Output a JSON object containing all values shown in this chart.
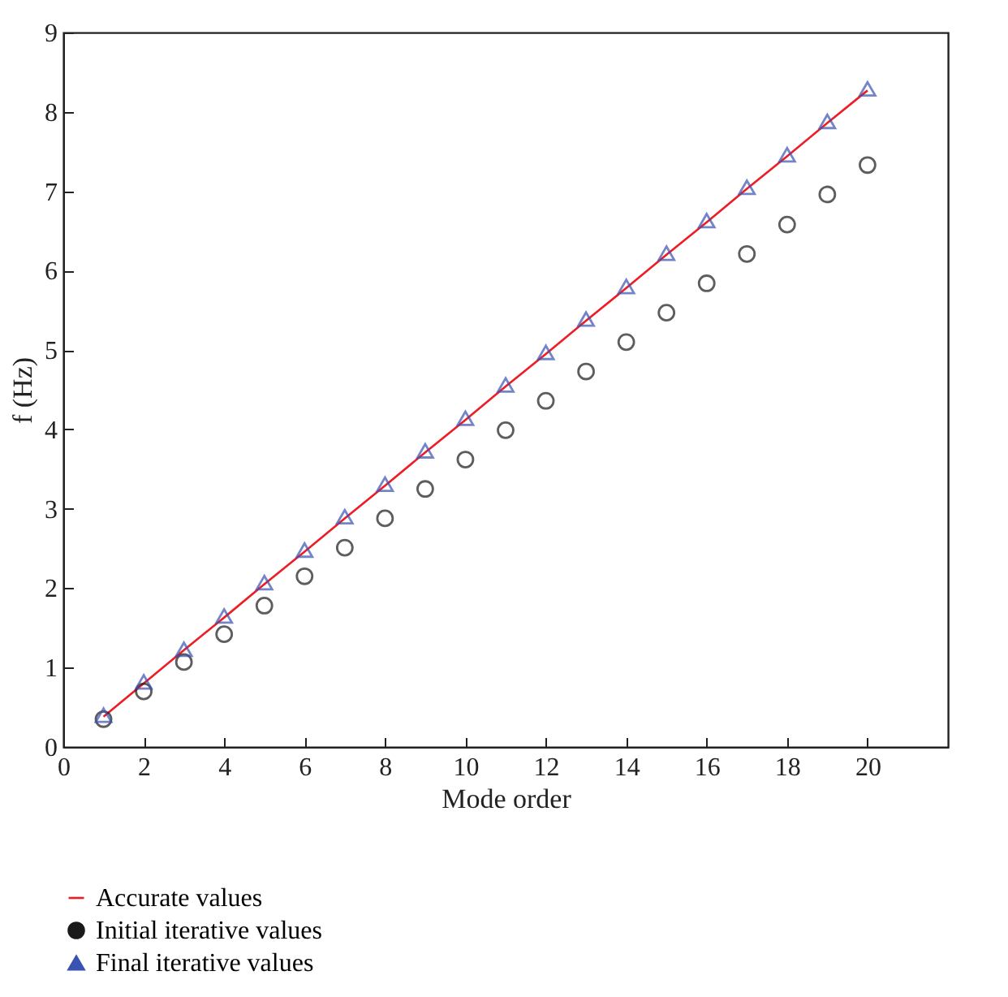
{
  "chart_data": {
    "type": "line",
    "xlabel": "Mode order",
    "ylabel": "f (Hz)",
    "x": [
      1,
      2,
      3,
      4,
      5,
      6,
      7,
      8,
      9,
      10,
      11,
      12,
      13,
      14,
      15,
      16,
      17,
      18,
      19,
      20
    ],
    "xlim": [
      0,
      22
    ],
    "xticks": [
      0,
      2,
      4,
      6,
      8,
      10,
      12,
      14,
      16,
      18,
      20
    ],
    "ylim": [
      0,
      9
    ],
    "yticks": [
      0,
      1,
      2,
      3,
      4,
      5,
      6,
      7,
      8,
      9
    ],
    "grid": false,
    "legend": "bottom",
    "series": [
      {
        "name": "Accurate values",
        "color": "#ee1c25",
        "marker": "none",
        "line_style": "solid",
        "values": [
          0.38,
          0.8,
          1.22,
          1.63,
          2.05,
          2.46,
          2.88,
          3.29,
          3.71,
          4.12,
          4.54,
          4.95,
          5.37,
          5.78,
          6.2,
          6.61,
          7.03,
          7.44,
          7.86,
          8.27
        ]
      },
      {
        "name": "Initial iterative values",
        "type": "scatter",
        "color": "#1a1a1a",
        "marker": "circle",
        "values": [
          0.35,
          0.7,
          1.07,
          1.42,
          1.78,
          2.15,
          2.51,
          2.88,
          3.25,
          3.62,
          3.99,
          4.36,
          4.73,
          5.1,
          5.47,
          5.84,
          6.21,
          6.58,
          6.96,
          7.33
        ]
      },
      {
        "name": "Final iterative values",
        "type": "scatter",
        "color": "#3a52b0",
        "marker": "triangle",
        "values": [
          0.4,
          0.82,
          1.23,
          1.65,
          2.07,
          2.48,
          2.9,
          3.31,
          3.73,
          4.14,
          4.56,
          4.97,
          5.39,
          5.8,
          6.22,
          6.63,
          7.05,
          7.46,
          7.88,
          8.29
        ]
      }
    ]
  }
}
